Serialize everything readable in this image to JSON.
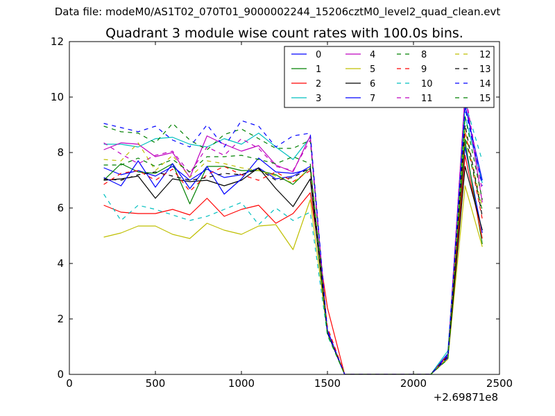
{
  "figure": {
    "suptitle": "Data file: modeM0/AS1T02_070T01_9000002244_15206cztM0_level2_quad_clean.evt"
  },
  "chart_data": {
    "type": "line",
    "title": "Quadrant 3 module wise count rates with 100.0s bins.",
    "xlabel": "",
    "ylabel": "",
    "x_offset_label": "+2.69871e8",
    "xlim": [
      0,
      2500
    ],
    "ylim": [
      0,
      12
    ],
    "xticks": [
      0,
      500,
      1000,
      1500,
      2000,
      2500
    ],
    "yticks": [
      0,
      2,
      4,
      6,
      8,
      10,
      12
    ],
    "grid": false,
    "legend": {
      "placement": "top-right",
      "columns": 4
    },
    "x": [
      200,
      300,
      400,
      500,
      600,
      700,
      800,
      900,
      1000,
      1100,
      1200,
      1300,
      1400,
      1500,
      1600,
      1700,
      1800,
      1900,
      2000,
      2100,
      2200,
      2300,
      2400
    ],
    "series": [
      {
        "name": "0",
        "color": "#0000ff",
        "dash": "solid",
        "values": [
          7.45,
          7.2,
          7.35,
          7.15,
          7.5,
          7.0,
          7.4,
          7.1,
          7.2,
          7.45,
          7.05,
          7.15,
          7.5,
          1.6,
          0,
          0,
          0,
          0,
          0,
          0,
          0.75,
          8.2,
          5.1
        ]
      },
      {
        "name": "1",
        "color": "#008000",
        "dash": "solid",
        "values": [
          7.0,
          7.6,
          7.3,
          7.25,
          7.6,
          6.15,
          7.5,
          7.5,
          7.35,
          7.35,
          7.2,
          6.85,
          7.45,
          1.5,
          0,
          0,
          0,
          0,
          0,
          0,
          0.6,
          8.4,
          4.7
        ]
      },
      {
        "name": "2",
        "color": "#ff0000",
        "dash": "solid",
        "values": [
          6.1,
          5.85,
          5.8,
          5.8,
          5.95,
          5.75,
          6.35,
          5.7,
          5.95,
          6.1,
          5.45,
          5.8,
          6.55,
          2.4,
          0,
          0,
          0,
          0,
          0,
          0,
          0.6,
          7.9,
          4.9
        ]
      },
      {
        "name": "3",
        "color": "#00bfbf",
        "dash": "solid",
        "values": [
          8.3,
          8.3,
          8.2,
          8.5,
          8.55,
          8.3,
          8.2,
          8.5,
          8.3,
          8.7,
          8.2,
          7.75,
          8.55,
          1.5,
          0,
          0,
          0,
          0,
          0,
          0,
          0.85,
          9.3,
          6.9
        ]
      },
      {
        "name": "4",
        "color": "#bf00bf",
        "dash": "solid",
        "values": [
          8.1,
          8.35,
          8.3,
          7.85,
          8.0,
          7.1,
          8.6,
          8.3,
          8.05,
          8.25,
          7.55,
          7.3,
          8.6,
          1.55,
          0,
          0,
          0,
          0,
          0,
          0,
          0.6,
          10.1,
          6.2
        ]
      },
      {
        "name": "5",
        "color": "#bfbf00",
        "dash": "solid",
        "values": [
          4.95,
          5.1,
          5.35,
          5.35,
          5.05,
          4.9,
          5.45,
          5.2,
          5.05,
          5.35,
          5.4,
          4.5,
          6.3,
          1.5,
          0,
          0,
          0,
          0,
          0,
          0,
          0.55,
          6.8,
          4.6
        ]
      },
      {
        "name": "6",
        "color": "#000000",
        "dash": "solid",
        "values": [
          7.0,
          7.05,
          7.15,
          6.35,
          7.05,
          6.95,
          7.0,
          6.8,
          7.0,
          7.45,
          6.7,
          6.05,
          7.05,
          1.5,
          0,
          0,
          0,
          0,
          0,
          0,
          0.6,
          7.5,
          5.2
        ]
      },
      {
        "name": "7",
        "color": "#0000ff",
        "dash": "solid",
        "values": [
          7.1,
          6.8,
          7.7,
          6.75,
          7.6,
          6.7,
          7.5,
          6.5,
          7.05,
          7.8,
          7.3,
          7.25,
          7.4,
          1.55,
          0,
          0,
          0,
          0,
          0,
          0,
          0.7,
          9.7,
          7.0
        ]
      },
      {
        "name": "8",
        "color": "#008000",
        "dash": "dashed",
        "values": [
          8.95,
          8.75,
          8.7,
          8.35,
          9.05,
          8.45,
          8.1,
          8.65,
          8.85,
          8.5,
          8.15,
          8.15,
          8.45,
          1.5,
          0,
          0,
          0,
          0,
          0,
          0,
          0.6,
          9.3,
          6.3
        ]
      },
      {
        "name": "9",
        "color": "#ff0000",
        "dash": "dashed",
        "values": [
          6.85,
          7.25,
          7.35,
          7.0,
          7.4,
          6.6,
          7.2,
          7.5,
          7.2,
          7.0,
          7.3,
          6.95,
          7.35,
          1.7,
          0,
          0,
          0,
          0,
          0,
          0,
          0.7,
          8.75,
          5.6
        ]
      },
      {
        "name": "10",
        "color": "#00bfbf",
        "dash": "dashed",
        "values": [
          6.5,
          5.55,
          6.1,
          5.95,
          5.75,
          5.55,
          5.7,
          5.95,
          6.2,
          5.4,
          6.0,
          5.55,
          5.85,
          1.4,
          0,
          0,
          0,
          0,
          0,
          0,
          0.6,
          9.8,
          7.7
        ]
      },
      {
        "name": "11",
        "color": "#bf00bf",
        "dash": "dashed",
        "values": [
          8.35,
          7.95,
          7.6,
          7.9,
          8.05,
          7.25,
          8.2,
          7.9,
          8.5,
          8.15,
          7.5,
          7.35,
          8.45,
          1.5,
          0,
          0,
          0,
          0,
          0,
          0,
          0.65,
          10.15,
          6.6
        ]
      },
      {
        "name": "12",
        "color": "#bfbf00",
        "dash": "dashed",
        "values": [
          7.75,
          7.7,
          8.35,
          7.35,
          7.9,
          7.1,
          7.7,
          7.6,
          7.45,
          7.35,
          7.15,
          6.9,
          7.45,
          1.45,
          0,
          0,
          0,
          0,
          0,
          0,
          0.6,
          8.8,
          6.0
        ]
      },
      {
        "name": "13",
        "color": "#000000",
        "dash": "dashed",
        "values": [
          7.05,
          7.0,
          7.2,
          7.3,
          7.15,
          7.0,
          7.1,
          7.25,
          7.2,
          7.4,
          7.0,
          7.1,
          7.45,
          1.5,
          0,
          0,
          0,
          0,
          0,
          0,
          0.65,
          9.0,
          5.7
        ]
      },
      {
        "name": "14",
        "color": "#0000ff",
        "dash": "dashed",
        "values": [
          9.05,
          8.9,
          8.75,
          8.95,
          8.45,
          8.2,
          9.0,
          8.2,
          9.15,
          8.95,
          8.2,
          8.6,
          8.7,
          1.55,
          0,
          0,
          0,
          0,
          0,
          0,
          0.6,
          9.6,
          6.8
        ]
      },
      {
        "name": "15",
        "color": "#008000",
        "dash": "dashed",
        "values": [
          7.55,
          7.55,
          7.8,
          7.5,
          7.75,
          7.3,
          7.85,
          7.85,
          7.9,
          7.75,
          7.6,
          7.85,
          7.6,
          1.45,
          0,
          0,
          0,
          0,
          0,
          0,
          0.55,
          8.55,
          5.9
        ]
      }
    ]
  }
}
